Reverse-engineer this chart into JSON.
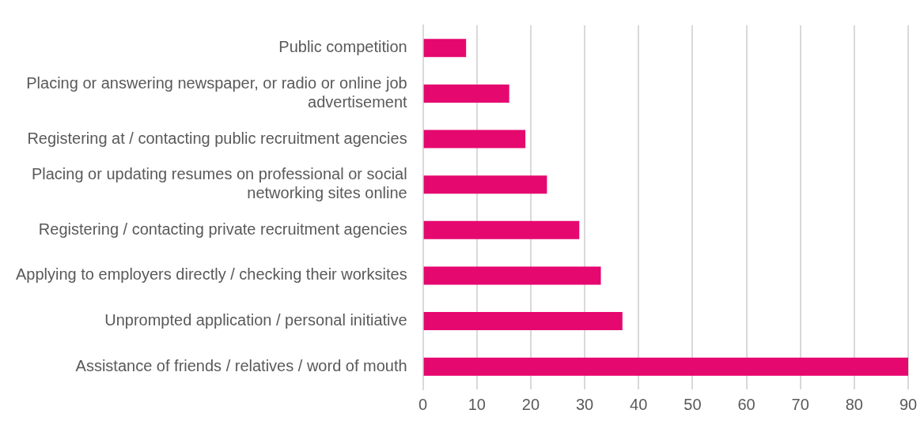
{
  "chart_data": {
    "type": "bar",
    "orientation": "horizontal",
    "categories": [
      "Public competition",
      "Placing or answering newspaper, or radio or online job advertisement",
      "Registering at / contacting public recruitment agencies",
      "Placing or updating resumes on professional or social networking sites online",
      "Registering / contacting private recruitment agencies",
      "Applying to employers directly / checking their worksites",
      "Unprompted application / personal initiative",
      "Assistance of friends / relatives / word of mouth"
    ],
    "values": [
      8,
      16,
      19,
      23,
      29,
      33,
      37,
      90
    ],
    "color": "#e5086f",
    "xlim": [
      0,
      90
    ],
    "xticks": [
      0,
      10,
      20,
      30,
      40,
      50,
      60,
      70,
      80,
      90
    ],
    "grid": "x",
    "legend": false
  }
}
